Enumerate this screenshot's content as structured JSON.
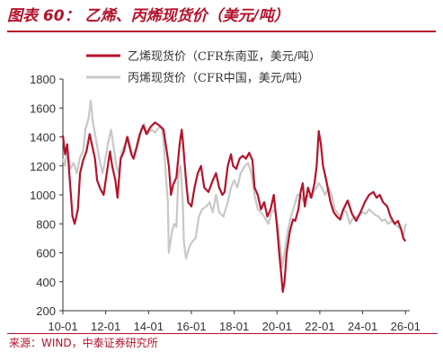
{
  "header": {
    "title_number": "图表 60：",
    "title_text": "乙烯、丙烯现货价（美元/吨）"
  },
  "footer": {
    "source": "来源：WIND，中泰证券研究所"
  },
  "chart_data": {
    "type": "line",
    "title": "乙烯、丙烯现货价（美元/吨）",
    "xlabel": "",
    "ylabel": "",
    "ylim": [
      200,
      1800
    ],
    "yticks": [
      200,
      400,
      600,
      800,
      1000,
      1200,
      1400,
      1600,
      1800
    ],
    "xlim": [
      2010.0,
      2026.2
    ],
    "xticks": [
      {
        "value": 2010,
        "label": "10-01"
      },
      {
        "value": 2012,
        "label": "12-01"
      },
      {
        "value": 2014,
        "label": "14-01"
      },
      {
        "value": 2016,
        "label": "16-01"
      },
      {
        "value": 2018,
        "label": "18-01"
      },
      {
        "value": 2020,
        "label": "20-01"
      },
      {
        "value": 2022,
        "label": "22-01"
      },
      {
        "value": 2024,
        "label": "24-01"
      },
      {
        "value": 2026,
        "label": "26-01"
      }
    ],
    "grid": false,
    "legend_position": "top-left",
    "series": [
      {
        "name": "乙烯现货价（CFR东南亚，美元/吨）",
        "color": "#b5122b",
        "points": [
          [
            2010.0,
            1410
          ],
          [
            2010.1,
            1280
          ],
          [
            2010.2,
            1350
          ],
          [
            2010.3,
            1150
          ],
          [
            2010.45,
            850
          ],
          [
            2010.55,
            800
          ],
          [
            2010.7,
            900
          ],
          [
            2010.8,
            1150
          ],
          [
            2010.95,
            1240
          ],
          [
            2011.1,
            1300
          ],
          [
            2011.25,
            1420
          ],
          [
            2011.35,
            1350
          ],
          [
            2011.5,
            1250
          ],
          [
            2011.6,
            1100
          ],
          [
            2011.75,
            1040
          ],
          [
            2011.9,
            1000
          ],
          [
            2012.05,
            1150
          ],
          [
            2012.2,
            1300
          ],
          [
            2012.3,
            1200
          ],
          [
            2012.45,
            1100
          ],
          [
            2012.55,
            980
          ],
          [
            2012.7,
            1250
          ],
          [
            2012.85,
            1300
          ],
          [
            2013.0,
            1400
          ],
          [
            2013.1,
            1340
          ],
          [
            2013.2,
            1280
          ],
          [
            2013.3,
            1250
          ],
          [
            2013.45,
            1330
          ],
          [
            2013.6,
            1420
          ],
          [
            2013.75,
            1480
          ],
          [
            2013.9,
            1420
          ],
          [
            2014.1,
            1470
          ],
          [
            2014.3,
            1500
          ],
          [
            2014.5,
            1480
          ],
          [
            2014.7,
            1450
          ],
          [
            2014.85,
            1300
          ],
          [
            2014.95,
            1200
          ],
          [
            2015.05,
            1000
          ],
          [
            2015.15,
            1070
          ],
          [
            2015.3,
            1120
          ],
          [
            2015.45,
            1350
          ],
          [
            2015.55,
            1450
          ],
          [
            2015.6,
            1380
          ],
          [
            2015.75,
            1100
          ],
          [
            2015.85,
            950
          ],
          [
            2016.0,
            920
          ],
          [
            2016.15,
            1050
          ],
          [
            2016.3,
            1150
          ],
          [
            2016.45,
            1200
          ],
          [
            2016.6,
            1050
          ],
          [
            2016.8,
            1020
          ],
          [
            2017.0,
            1100
          ],
          [
            2017.15,
            1150
          ],
          [
            2017.3,
            1050
          ],
          [
            2017.45,
            1000
          ],
          [
            2017.55,
            1020
          ],
          [
            2017.7,
            1200
          ],
          [
            2017.85,
            1280
          ],
          [
            2017.95,
            1200
          ],
          [
            2018.1,
            1180
          ],
          [
            2018.25,
            1250
          ],
          [
            2018.4,
            1270
          ],
          [
            2018.55,
            1250
          ],
          [
            2018.7,
            1290
          ],
          [
            2018.85,
            1240
          ],
          [
            2018.95,
            1050
          ],
          [
            2019.1,
            1000
          ],
          [
            2019.25,
            900
          ],
          [
            2019.4,
            950
          ],
          [
            2019.55,
            850
          ],
          [
            2019.7,
            900
          ],
          [
            2019.85,
            1000
          ],
          [
            2020.0,
            780
          ],
          [
            2020.1,
            600
          ],
          [
            2020.2,
            450
          ],
          [
            2020.27,
            330
          ],
          [
            2020.35,
            400
          ],
          [
            2020.45,
            600
          ],
          [
            2020.6,
            750
          ],
          [
            2020.75,
            830
          ],
          [
            2020.85,
            820
          ],
          [
            2021.0,
            900
          ],
          [
            2021.1,
            1020
          ],
          [
            2021.2,
            1080
          ],
          [
            2021.3,
            920
          ],
          [
            2021.45,
            1050
          ],
          [
            2021.6,
            980
          ],
          [
            2021.75,
            1080
          ],
          [
            2021.85,
            1200
          ],
          [
            2021.95,
            1440
          ],
          [
            2022.05,
            1350
          ],
          [
            2022.15,
            1200
          ],
          [
            2022.3,
            1100
          ],
          [
            2022.5,
            950
          ],
          [
            2022.65,
            880
          ],
          [
            2022.8,
            850
          ],
          [
            2022.95,
            830
          ],
          [
            2023.1,
            900
          ],
          [
            2023.3,
            960
          ],
          [
            2023.5,
            870
          ],
          [
            2023.7,
            820
          ],
          [
            2023.9,
            880
          ],
          [
            2024.1,
            950
          ],
          [
            2024.3,
            1000
          ],
          [
            2024.5,
            1020
          ],
          [
            2024.65,
            980
          ],
          [
            2024.8,
            1000
          ],
          [
            2024.95,
            950
          ],
          [
            2025.15,
            920
          ],
          [
            2025.3,
            850
          ],
          [
            2025.5,
            800
          ],
          [
            2025.65,
            820
          ],
          [
            2025.8,
            760
          ],
          [
            2025.9,
            700
          ],
          [
            2026.0,
            680
          ]
        ]
      },
      {
        "name": "丙烯现货价（CFR中国，美元/吨）",
        "color": "#c8c8c8",
        "points": [
          [
            2010.0,
            1250
          ],
          [
            2010.1,
            1200
          ],
          [
            2010.2,
            1330
          ],
          [
            2010.35,
            1180
          ],
          [
            2010.5,
            1220
          ],
          [
            2010.65,
            1150
          ],
          [
            2010.8,
            1260
          ],
          [
            2010.95,
            1300
          ],
          [
            2011.05,
            1450
          ],
          [
            2011.2,
            1530
          ],
          [
            2011.3,
            1650
          ],
          [
            2011.4,
            1500
          ],
          [
            2011.55,
            1380
          ],
          [
            2011.7,
            1250
          ],
          [
            2011.85,
            1150
          ],
          [
            2011.95,
            1220
          ],
          [
            2012.1,
            1350
          ],
          [
            2012.25,
            1450
          ],
          [
            2012.35,
            1350
          ],
          [
            2012.5,
            1200
          ],
          [
            2012.6,
            1150
          ],
          [
            2012.75,
            1300
          ],
          [
            2012.9,
            1350
          ],
          [
            2013.05,
            1400
          ],
          [
            2013.2,
            1300
          ],
          [
            2013.35,
            1280
          ],
          [
            2013.5,
            1380
          ],
          [
            2013.65,
            1450
          ],
          [
            2013.8,
            1490
          ],
          [
            2013.95,
            1420
          ],
          [
            2014.15,
            1450
          ],
          [
            2014.3,
            1430
          ],
          [
            2014.45,
            1460
          ],
          [
            2014.6,
            1470
          ],
          [
            2014.7,
            1380
          ],
          [
            2014.8,
            1150
          ],
          [
            2014.9,
            950
          ],
          [
            2014.95,
            600
          ],
          [
            2015.0,
            650
          ],
          [
            2015.1,
            750
          ],
          [
            2015.2,
            800
          ],
          [
            2015.3,
            780
          ],
          [
            2015.4,
            1150
          ],
          [
            2015.5,
            1200
          ],
          [
            2015.6,
            950
          ],
          [
            2015.65,
            680
          ],
          [
            2015.75,
            560
          ],
          [
            2015.9,
            640
          ],
          [
            2016.05,
            680
          ],
          [
            2016.2,
            700
          ],
          [
            2016.35,
            850
          ],
          [
            2016.5,
            900
          ],
          [
            2016.7,
            920
          ],
          [
            2016.85,
            950
          ],
          [
            2017.0,
            880
          ],
          [
            2017.15,
            1000
          ],
          [
            2017.3,
            880
          ],
          [
            2017.5,
            850
          ],
          [
            2017.7,
            950
          ],
          [
            2017.85,
            1050
          ],
          [
            2018.0,
            1100
          ],
          [
            2018.15,
            1050
          ],
          [
            2018.3,
            1150
          ],
          [
            2018.5,
            1200
          ],
          [
            2018.65,
            1220
          ],
          [
            2018.8,
            1150
          ],
          [
            2018.95,
            1000
          ],
          [
            2019.1,
            900
          ],
          [
            2019.25,
            880
          ],
          [
            2019.4,
            850
          ],
          [
            2019.6,
            800
          ],
          [
            2019.75,
            880
          ],
          [
            2019.9,
            900
          ],
          [
            2020.0,
            820
          ],
          [
            2020.15,
            650
          ],
          [
            2020.25,
            500
          ],
          [
            2020.35,
            600
          ],
          [
            2020.5,
            750
          ],
          [
            2020.65,
            850
          ],
          [
            2020.8,
            920
          ],
          [
            2020.95,
            1000
          ],
          [
            2021.1,
            1000
          ],
          [
            2021.25,
            950
          ],
          [
            2021.4,
            1000
          ],
          [
            2021.55,
            980
          ],
          [
            2021.7,
            1020
          ],
          [
            2021.85,
            1050
          ],
          [
            2021.95,
            1080
          ],
          [
            2022.1,
            1050
          ],
          [
            2022.25,
            1000
          ],
          [
            2022.4,
            1050
          ],
          [
            2022.55,
            1000
          ],
          [
            2022.7,
            900
          ],
          [
            2022.85,
            870
          ],
          [
            2022.95,
            850
          ],
          [
            2023.1,
            900
          ],
          [
            2023.25,
            880
          ],
          [
            2023.4,
            800
          ],
          [
            2023.55,
            840
          ],
          [
            2023.7,
            850
          ],
          [
            2023.85,
            860
          ],
          [
            2024.0,
            880
          ],
          [
            2024.15,
            870
          ],
          [
            2024.3,
            900
          ],
          [
            2024.45,
            880
          ],
          [
            2024.6,
            860
          ],
          [
            2024.75,
            850
          ],
          [
            2024.9,
            820
          ],
          [
            2025.05,
            830
          ],
          [
            2025.2,
            800
          ],
          [
            2025.35,
            820
          ],
          [
            2025.5,
            800
          ],
          [
            2025.65,
            780
          ],
          [
            2025.8,
            760
          ],
          [
            2025.9,
            720
          ],
          [
            2026.0,
            790
          ],
          [
            2026.05,
            800
          ]
        ]
      }
    ]
  }
}
